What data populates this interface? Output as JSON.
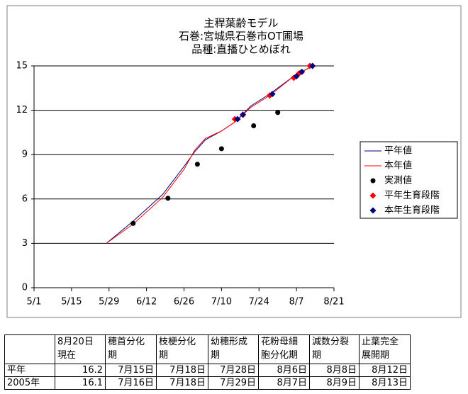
{
  "chart_data": {
    "type": "line",
    "title": [
      "主稈葉齢モデル",
      "石巻:宮城県石巻市OT圃場",
      "品種:直播ひとめぼれ"
    ],
    "xlim": [
      "5/1",
      "8/21"
    ],
    "xticks": [
      "5/1",
      "5/15",
      "5/29",
      "6/12",
      "6/26",
      "7/10",
      "7/24",
      "8/7",
      "8/21"
    ],
    "ylim": [
      0,
      15
    ],
    "yticks": [
      0,
      3,
      6,
      9,
      12,
      15
    ],
    "grid": true,
    "series": [
      {
        "name": "平年値",
        "color": "#000080",
        "marker": "line",
        "x": [
          "5/28",
          "6/7",
          "6/18",
          "6/26",
          "6/30",
          "7/4",
          "7/10",
          "7/15",
          "7/21",
          "7/28",
          "8/6",
          "8/13"
        ],
        "values": [
          3.0,
          4.5,
          6.3,
          8.2,
          9.2,
          10.0,
          10.6,
          11.2,
          12.3,
          13.1,
          14.3,
          15.0
        ]
      },
      {
        "name": "本年値",
        "color": "#ff0000",
        "marker": "line",
        "x": [
          "5/28",
          "6/7",
          "6/18",
          "6/26",
          "6/30",
          "7/4",
          "7/10",
          "7/15",
          "7/21",
          "7/28",
          "8/6",
          "8/13"
        ],
        "values": [
          3.0,
          4.3,
          6.1,
          8.0,
          9.3,
          10.1,
          10.6,
          11.2,
          12.2,
          13.0,
          14.3,
          15.0
        ]
      },
      {
        "name": "実測値",
        "color": "#000000",
        "marker": "circle",
        "x": [
          "6/7",
          "6/20",
          "7/1",
          "7/10",
          "7/22",
          "7/31"
        ],
        "values": [
          4.35,
          6.05,
          8.35,
          9.4,
          10.95,
          11.85
        ]
      },
      {
        "name": "平年生育段階",
        "color": "#ff0000",
        "marker": "diamond",
        "x": [
          "7/15",
          "7/18",
          "7/28",
          "8/6",
          "8/8",
          "8/12"
        ],
        "values": [
          11.4,
          11.7,
          13.0,
          14.2,
          14.5,
          15.0
        ]
      },
      {
        "name": "本年生育段階",
        "color": "#000080",
        "marker": "diamond",
        "x": [
          "7/16",
          "7/18",
          "7/29",
          "8/7",
          "8/9",
          "8/13"
        ],
        "values": [
          11.4,
          11.7,
          13.1,
          14.3,
          14.6,
          15.0
        ]
      }
    ]
  },
  "table": {
    "header": [
      [],
      [
        "8月20日",
        "現在"
      ],
      [
        "穂首分化",
        "期"
      ],
      [
        "枝梗分化",
        "期"
      ],
      [
        "幼穂形成",
        "期"
      ],
      [
        "花粉母細",
        "胞分化期"
      ],
      [
        "減数分裂",
        "期"
      ],
      [
        "止葉完全",
        "展開期"
      ]
    ],
    "rows": [
      [
        "平年",
        16.2,
        "7月15日",
        "7月18日",
        "7月28日",
        "8月6日",
        "8月8日",
        "8月12日"
      ],
      [
        "2005年",
        16.1,
        "7月16日",
        "7月18日",
        "7月29日",
        "8月7日",
        "8月9日",
        "8月13日"
      ]
    ]
  }
}
